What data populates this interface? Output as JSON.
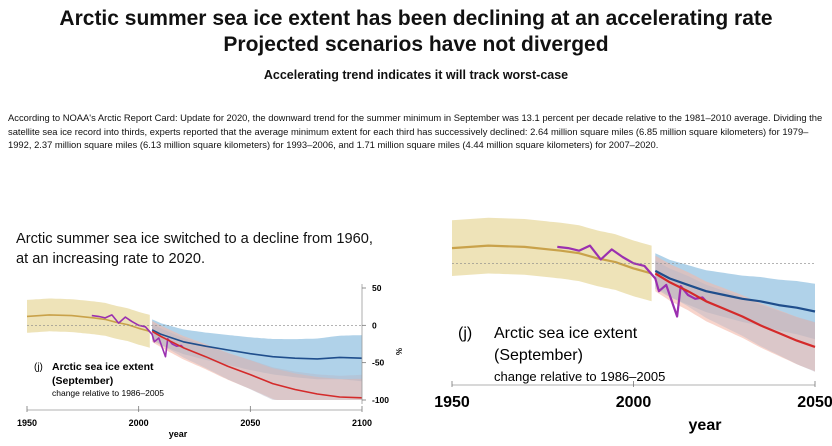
{
  "header": {
    "title_line1": "Arctic summer sea ice extent has been declining at an accelerating rate",
    "title_line2": "Projected scenarios have not diverged",
    "subtitle": "Accelerating trend indicates it will track worst-case"
  },
  "paragraph": "According to NOAA's Arctic Report Card: Update for 2020, the downward trend for the summer minimum in September was 13.1 percent per decade relative to the 1981–2010 average. Dividing the satellite sea ice record into thirds, experts reported that the average minimum extent for each third has successively declined: 2.64 million square miles (6.85 million square kilometers) for 1979–1992, 2.37 million square miles (6.13 million square kilometers) for 1993–2006, and 1.71 million square miles (4.44 million square kilometers) for 2007–2020.",
  "left_caption": {
    "line1": "Arctic summer sea ice switched to a decline from 1960,",
    "line2": "at an increasing rate to 2020."
  },
  "colors": {
    "historical": "#c9a24a",
    "observed": "#9b30b0",
    "rcp_low": "#1f4e8c",
    "rcp_high": "#d42a2a",
    "band_low": "#8fbfe0",
    "band_high": "#f4b8a8",
    "band_hist": "#e8d9a0",
    "band_grey": "#b9b9c8"
  },
  "chart_data": [
    {
      "type": "line",
      "panel_label": "(j)",
      "title": "Arctic sea ice extent",
      "title2": "(September)",
      "subtitle": "change relative to 1986–2005",
      "xlabel": "year",
      "ylabel": "%",
      "xlim": [
        1950,
        2100
      ],
      "ylim": [
        -100,
        50
      ],
      "xticks": [
        "1950",
        "2000",
        "2050",
        "2100"
      ],
      "yticks": [
        "50",
        "0",
        "-50",
        "-100"
      ],
      "grid": false,
      "series": [
        {
          "role": "historical",
          "x": [
            1950,
            1960,
            1970,
            1980,
            1985,
            1990,
            1995,
            2000,
            2005
          ],
          "y": [
            12,
            14,
            13,
            10,
            8,
            4,
            1,
            -4,
            -8
          ]
        },
        {
          "role": "observed",
          "x": [
            1979,
            1982,
            1985,
            1988,
            1991,
            1994,
            1997,
            2000,
            2003,
            2006,
            2007,
            2009,
            2012,
            2013,
            2015,
            2017,
            2019,
            2020
          ],
          "y": [
            13,
            12,
            10,
            14,
            3,
            11,
            5,
            0,
            -2,
            -12,
            -22,
            -17,
            -42,
            -18,
            -25,
            -28,
            -27,
            -30
          ]
        },
        {
          "role": "rcp_low",
          "x": [
            2006,
            2010,
            2020,
            2030,
            2040,
            2050,
            2060,
            2070,
            2080,
            2090,
            2100
          ],
          "y": [
            -6,
            -12,
            -22,
            -28,
            -33,
            -38,
            -42,
            -44,
            -45,
            -43,
            -44
          ]
        },
        {
          "role": "rcp_high",
          "x": [
            2006,
            2010,
            2020,
            2030,
            2040,
            2050,
            2060,
            2070,
            2080,
            2090,
            2100
          ],
          "y": [
            -8,
            -15,
            -30,
            -42,
            -55,
            -66,
            -78,
            -86,
            -92,
            -96,
            -97
          ]
        }
      ]
    },
    {
      "type": "line",
      "panel_label": "(j)",
      "title": "Arctic sea ice extent",
      "title2": "(September)",
      "subtitle": "change relative to 1986–2005",
      "xlabel": "year",
      "xlim": [
        1950,
        2050
      ],
      "ylim": [
        -100,
        50
      ],
      "xticks": [
        "1950",
        "2000",
        "2050"
      ],
      "grid": false,
      "series": [
        {
          "role": "historical",
          "x": [
            1950,
            1960,
            1970,
            1980,
            1985,
            1990,
            1995,
            2000,
            2005
          ],
          "y": [
            12,
            14,
            13,
            10,
            8,
            4,
            1,
            -4,
            -8
          ]
        },
        {
          "role": "observed",
          "x": [
            1979,
            1982,
            1985,
            1988,
            1991,
            1994,
            1997,
            2000,
            2003,
            2006,
            2007,
            2009,
            2012,
            2013,
            2015,
            2017,
            2019,
            2020
          ],
          "y": [
            13,
            12,
            10,
            14,
            3,
            11,
            5,
            0,
            -2,
            -12,
            -22,
            -17,
            -42,
            -18,
            -25,
            -28,
            -27,
            -30
          ]
        },
        {
          "role": "rcp_low",
          "x": [
            2006,
            2010,
            2015,
            2020,
            2025,
            2030,
            2035,
            2040,
            2045,
            2050
          ],
          "y": [
            -6,
            -12,
            -17,
            -22,
            -25,
            -28,
            -30,
            -33,
            -35,
            -38
          ]
        },
        {
          "role": "rcp_high",
          "x": [
            2006,
            2010,
            2015,
            2020,
            2025,
            2030,
            2035,
            2040,
            2045,
            2050
          ],
          "y": [
            -8,
            -15,
            -22,
            -30,
            -36,
            -42,
            -49,
            -55,
            -61,
            -66
          ]
        }
      ]
    }
  ]
}
